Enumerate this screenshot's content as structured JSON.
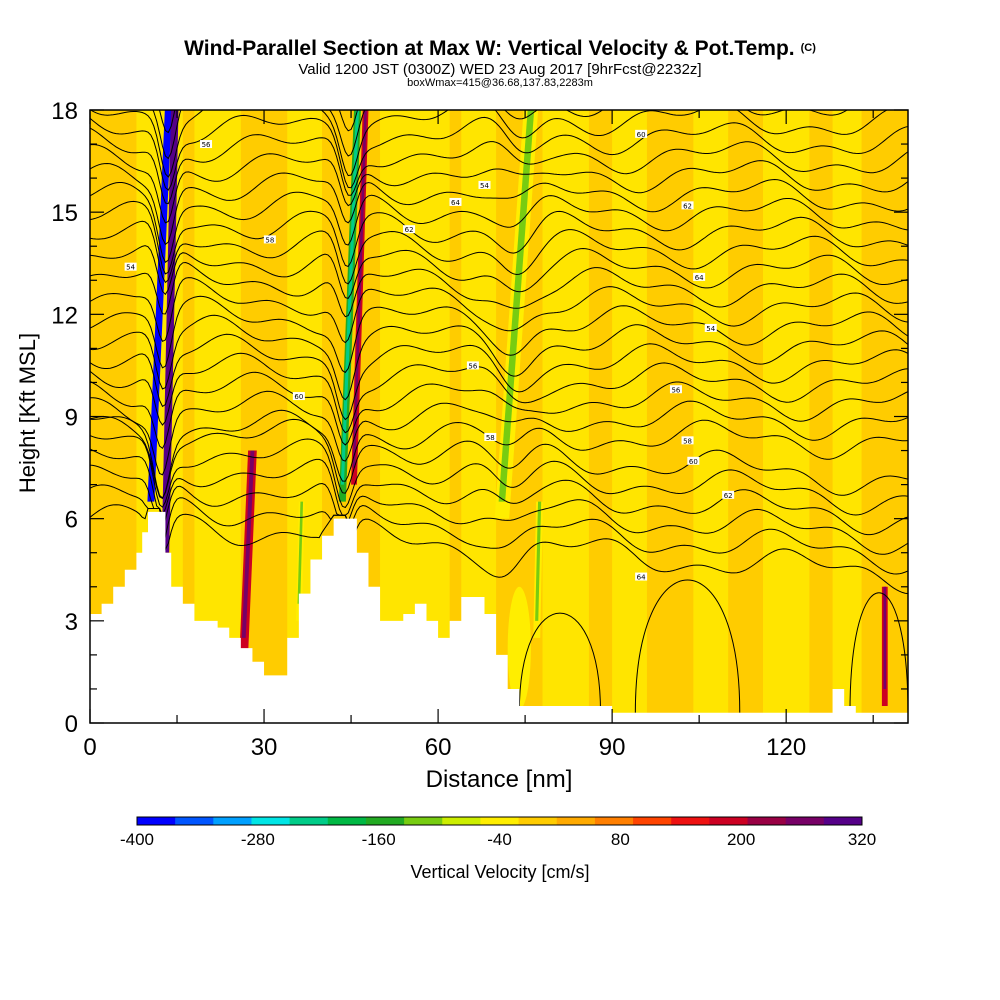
{
  "header": {
    "title": "Wind-Parallel Section at Max W: Vertical Velocity & Pot.Temp.",
    "copyright": "(C)",
    "valid_line": "Valid 1200 JST (0300Z) WED 23 Aug 2017 [9hrFcst@2232z]",
    "box_line": "boxWmax=415@36.68,137.83,2283m"
  },
  "colorbar": {
    "label": "Vertical Velocity [cm/s]",
    "tick_labels": [
      "-400",
      "-280",
      "-160",
      "-40",
      "80",
      "200",
      "320"
    ],
    "tick_values": [
      -400,
      -280,
      -160,
      -40,
      80,
      200,
      320
    ],
    "colors": [
      "#0000ff",
      "#0055ff",
      "#00a0ff",
      "#00e5e5",
      "#00cc88",
      "#00b844",
      "#22aa22",
      "#77cc11",
      "#ccee00",
      "#ffee00",
      "#ffcc00",
      "#ffaa00",
      "#ff7f00",
      "#ff4400",
      "#ee1111",
      "#cc0022",
      "#990044",
      "#770066",
      "#550088"
    ]
  },
  "chart_data": {
    "type": "heatmap",
    "title": "Wind-Parallel Section at Max W: Vertical Velocity & Pot.Temp.",
    "xlabel": "Distance [nm]",
    "ylabel": "Height [Kft MSL]",
    "xlim": [
      0,
      141
    ],
    "ylim": [
      0,
      18
    ],
    "x_ticks": [
      0,
      30,
      60,
      90,
      120
    ],
    "y_ticks": [
      0,
      3,
      6,
      9,
      12,
      15,
      18
    ],
    "grid": false,
    "background_color": "#ffcc00",
    "terrain": {
      "x": [
        0,
        2,
        4,
        6,
        8,
        9,
        10,
        12,
        13,
        14,
        16,
        18,
        20,
        22,
        24,
        26,
        28,
        30,
        32,
        34,
        36,
        38,
        40,
        42,
        44,
        46,
        48,
        50,
        52,
        54,
        56,
        58,
        60,
        62,
        64,
        66,
        68,
        70,
        72,
        74,
        76,
        78,
        80,
        85,
        90,
        95,
        100,
        105,
        110,
        115,
        120,
        122,
        124,
        126,
        128,
        130,
        132,
        135,
        138,
        141
      ],
      "height": [
        3.2,
        3.5,
        4.0,
        4.5,
        5.0,
        5.6,
        6.2,
        6.2,
        5.0,
        4.0,
        3.5,
        3.0,
        3.0,
        2.8,
        2.5,
        2.2,
        1.8,
        1.4,
        1.4,
        2.5,
        3.8,
        4.8,
        5.5,
        6.0,
        6.0,
        5.0,
        4.0,
        3.0,
        3.0,
        3.2,
        3.5,
        3.0,
        2.5,
        3.0,
        3.7,
        3.7,
        3.2,
        2.0,
        1.0,
        0.5,
        0.5,
        0.5,
        0.5,
        0.5,
        0.3,
        0.3,
        0.3,
        0.3,
        0.3,
        0.3,
        0.3,
        0.3,
        0.3,
        0.3,
        1.0,
        0.5,
        0.3,
        0.3,
        0.3,
        0.3
      ]
    },
    "vertical_velocity_features": [
      {
        "x_center": 10.5,
        "y_range": [
          6.5,
          18
        ],
        "lean": 3.0,
        "width": 1.2,
        "value": -400
      },
      {
        "x_center": 13.0,
        "y_range": [
          5.0,
          18
        ],
        "lean": 1.6,
        "width": 1.3,
        "value": 320
      },
      {
        "x_center": 43.5,
        "y_range": [
          6.5,
          18
        ],
        "lean": 2.6,
        "width": 1.2,
        "value": -160
      },
      {
        "x_center": 45.5,
        "y_range": [
          7.0,
          18
        ],
        "lean": 2.0,
        "width": 1.0,
        "value": 200
      },
      {
        "x_center": 26.5,
        "y_range": [
          2.0,
          8.0
        ],
        "lean": 1.5,
        "width": 1.5,
        "value": 200
      },
      {
        "x_center": 71.0,
        "y_range": [
          6.0,
          18
        ],
        "lean": 5.0,
        "width": 2.5,
        "value": -40
      },
      {
        "x_center": 77.0,
        "y_range": [
          2.5,
          6.5
        ],
        "lean": 0.5,
        "width": 1.2,
        "value": -40
      },
      {
        "x_center": 36.0,
        "y_range": [
          3.0,
          6.5
        ],
        "lean": 0.5,
        "width": 1.0,
        "value": -40
      },
      {
        "x_center": 137.0,
        "y_range": [
          0.5,
          4.0
        ],
        "lean": 0.0,
        "width": 1.0,
        "value": 200
      }
    ],
    "theta_isentropes": {
      "count": 32,
      "spacing_kft": 0.55,
      "contour_labels": [
        "54",
        "56",
        "58",
        "60",
        "62",
        "64"
      ],
      "closed_contours": [
        {
          "x_range": [
            94,
            112
          ],
          "y_range": [
            0.3,
            5.5
          ]
        },
        {
          "x_range": [
            74,
            88
          ],
          "y_range": [
            0.3,
            4.2
          ]
        },
        {
          "x_range": [
            131,
            141
          ],
          "y_range": [
            0.3,
            5.0
          ]
        }
      ]
    }
  }
}
